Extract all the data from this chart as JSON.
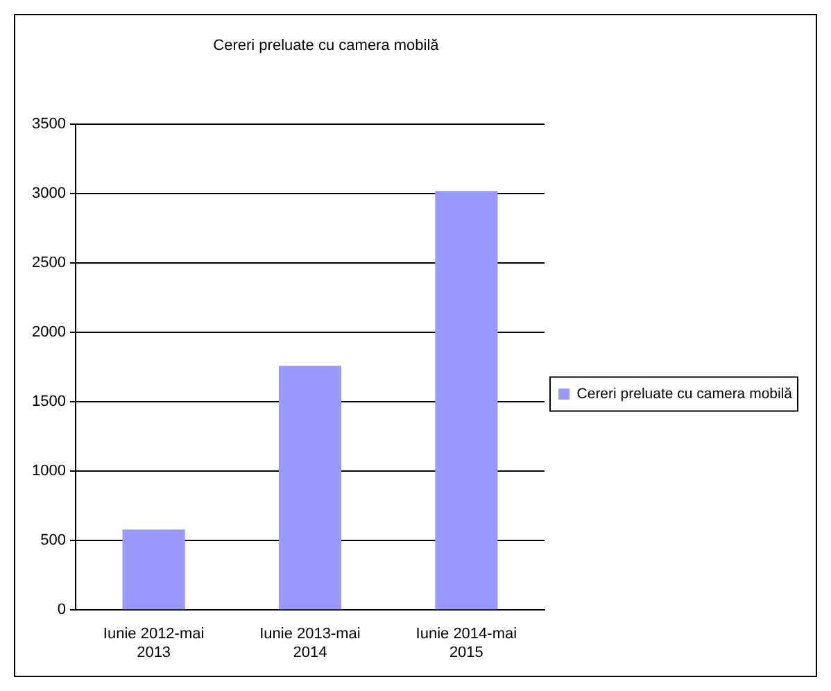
{
  "chart_data": {
    "type": "bar",
    "title": "Cereri preluate cu camera mobilă",
    "categories": [
      "Iunie 2012-mai 2013",
      "Iunie 2013-mai 2014",
      "Iunie 2014-mai 2015"
    ],
    "series": [
      {
        "name": "Cereri preluate cu camera mobilă",
        "color": "#9999ff",
        "values": [
          580,
          1760,
          3020
        ]
      }
    ],
    "ylim": [
      0,
      3500
    ],
    "yticks": [
      0,
      500,
      1000,
      1500,
      2000,
      2500,
      3000,
      3500
    ],
    "grid": "y",
    "legend": "right"
  }
}
